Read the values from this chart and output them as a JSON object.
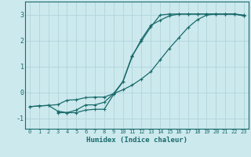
{
  "xlabel": "Humidex (Indice chaleur)",
  "bg_color": "#cce9ee",
  "grid_color": "#b0d4da",
  "line_color": "#1a6b6b",
  "xlim": [
    -0.5,
    23.5
  ],
  "ylim": [
    -1.4,
    3.5
  ],
  "xticks": [
    0,
    1,
    2,
    3,
    4,
    5,
    6,
    7,
    8,
    9,
    10,
    11,
    12,
    13,
    14,
    15,
    16,
    17,
    18,
    19,
    20,
    21,
    22,
    23
  ],
  "yticks": [
    -1,
    0,
    1,
    2,
    3
  ],
  "line1_x": [
    0,
    1,
    2,
    3,
    4,
    5,
    6,
    7,
    8,
    9,
    10,
    11,
    12,
    13,
    14,
    15,
    16,
    17,
    18,
    19,
    20,
    21,
    22,
    23
  ],
  "line1_y": [
    -0.55,
    -0.52,
    -0.5,
    -0.47,
    -0.3,
    -0.28,
    -0.2,
    -0.18,
    -0.18,
    -0.05,
    0.1,
    0.28,
    0.52,
    0.8,
    1.25,
    1.7,
    2.1,
    2.5,
    2.8,
    2.98,
    3.02,
    3.02,
    3.02,
    2.98
  ],
  "line2_x": [
    0,
    1,
    2,
    3,
    4,
    5,
    6,
    7,
    8,
    9,
    10,
    11,
    12,
    13,
    14,
    15,
    16,
    17,
    18,
    19,
    20,
    21,
    22,
    23
  ],
  "line2_y": [
    -0.55,
    -0.52,
    -0.5,
    -0.72,
    -0.78,
    -0.78,
    -0.68,
    -0.65,
    -0.65,
    -0.08,
    0.4,
    1.38,
    2.05,
    2.58,
    2.78,
    2.95,
    3.02,
    3.02,
    3.02,
    3.02,
    3.02,
    3.02,
    3.02,
    2.95
  ],
  "line3_x": [
    3,
    4,
    5,
    6,
    7,
    8,
    9,
    10,
    11,
    12,
    13,
    14,
    15,
    16,
    17,
    18,
    19,
    20,
    21,
    22,
    23
  ],
  "line3_y": [
    -0.78,
    -0.78,
    -0.68,
    -0.48,
    -0.48,
    -0.38,
    -0.05,
    0.42,
    1.42,
    1.98,
    2.52,
    2.98,
    3.02,
    3.02,
    3.02,
    3.02,
    3.02,
    3.02,
    3.02,
    3.02,
    2.95
  ]
}
